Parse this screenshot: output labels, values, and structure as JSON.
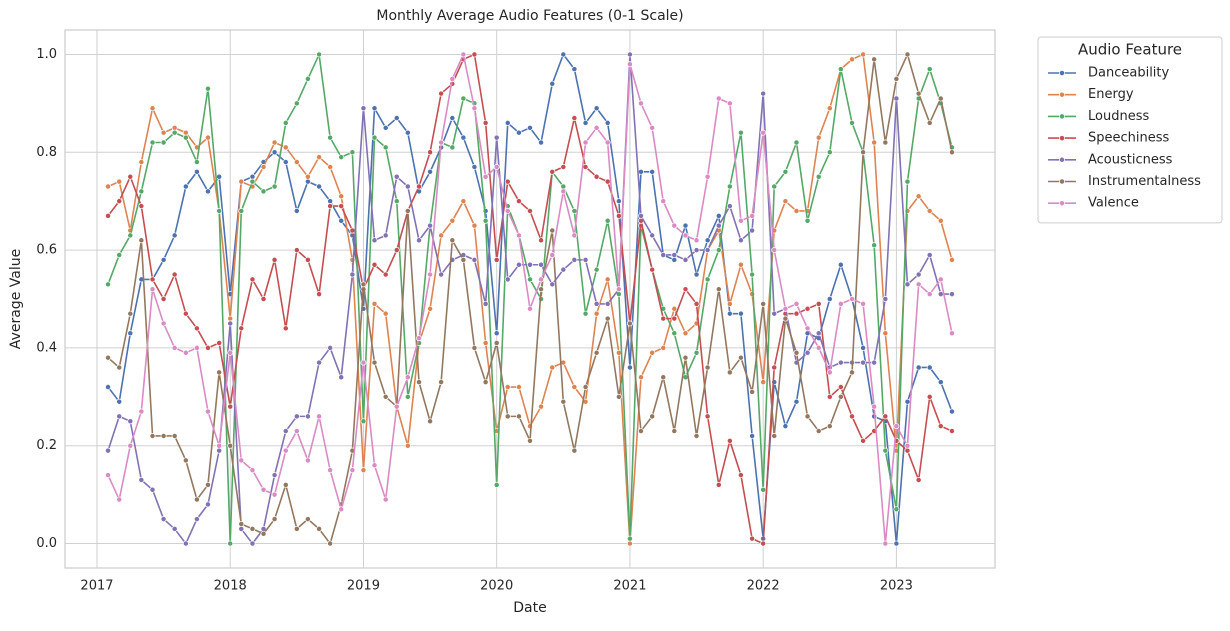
{
  "chart_data": {
    "type": "line",
    "title": "Monthly Average Audio Features (0-1 Scale)",
    "x_label": "Date",
    "y_label": "Average Value",
    "legend_title": "Audio Feature",
    "legend_position": "outside",
    "grid": true,
    "x": [
      2017.083,
      2017.167,
      2017.25,
      2017.333,
      2017.417,
      2017.5,
      2017.583,
      2017.667,
      2017.75,
      2017.833,
      2017.917,
      2018,
      2018.083,
      2018.167,
      2018.25,
      2018.333,
      2018.417,
      2018.5,
      2018.583,
      2018.667,
      2018.75,
      2018.833,
      2018.917,
      2019,
      2019.083,
      2019.167,
      2019.25,
      2019.333,
      2019.417,
      2019.5,
      2019.583,
      2019.667,
      2019.75,
      2019.833,
      2019.917,
      2020,
      2020.083,
      2020.167,
      2020.25,
      2020.333,
      2020.417,
      2020.5,
      2020.583,
      2020.667,
      2020.75,
      2020.833,
      2020.917,
      2021,
      2021.083,
      2021.167,
      2021.25,
      2021.333,
      2021.417,
      2021.5,
      2021.583,
      2021.667,
      2021.75,
      2021.833,
      2021.917,
      2022,
      2022.083,
      2022.167,
      2022.25,
      2022.333,
      2022.417,
      2022.5,
      2022.583,
      2022.667,
      2022.75,
      2022.833,
      2022.917,
      2023,
      2023.083,
      2023.167,
      2023.25,
      2023.333,
      2023.417
    ],
    "xlim": [
      2016.76,
      2023.74
    ],
    "xticks": [
      2017,
      2018,
      2019,
      2020,
      2021,
      2022,
      2023
    ],
    "ylim": [
      -0.05,
      1.05
    ],
    "yticks": [
      {
        "value": 0,
        "label": "0.0"
      },
      0.2,
      0.4,
      0.6,
      0.8,
      {
        "value": 1,
        "label": "1.0"
      }
    ],
    "series": [
      {
        "name": "Danceability",
        "color": "#4c72b0",
        "values": [
          0.32,
          0.29,
          0.43,
          0.54,
          0.54,
          0.58,
          0.63,
          0.73,
          0.76,
          0.72,
          0.75,
          0.51,
          0.74,
          0.75,
          0.78,
          0.8,
          0.78,
          0.68,
          0.74,
          0.73,
          0.7,
          0.66,
          0.63,
          0.48,
          0.89,
          0.85,
          0.87,
          0.84,
          0.72,
          0.76,
          0.81,
          0.87,
          0.83,
          0.77,
          0.68,
          0.43,
          0.86,
          0.84,
          0.85,
          0.82,
          0.94,
          1.0,
          0.97,
          0.86,
          0.89,
          0.86,
          0.7,
          0.36,
          0.76,
          0.76,
          0.59,
          0.58,
          0.65,
          0.55,
          0.62,
          0.67,
          0.47,
          0.47,
          0.22,
          0.01,
          0.33,
          0.24,
          0.29,
          0.43,
          0.42,
          0.5,
          0.57,
          0.5,
          0.4,
          0.26,
          0.25,
          0.0,
          0.29,
          0.36,
          0.36,
          0.33,
          0.27
        ]
      },
      {
        "name": "Energy",
        "color": "#dd8452",
        "values": [
          0.73,
          0.74,
          0.64,
          0.78,
          0.89,
          0.84,
          0.85,
          0.84,
          0.81,
          0.83,
          0.68,
          0.46,
          0.74,
          0.73,
          0.77,
          0.82,
          0.81,
          0.78,
          0.75,
          0.79,
          0.77,
          0.71,
          0.58,
          0.15,
          0.49,
          0.47,
          0.28,
          0.2,
          0.41,
          0.48,
          0.63,
          0.66,
          0.7,
          0.65,
          0.41,
          0.23,
          0.32,
          0.32,
          0.24,
          0.28,
          0.36,
          0.37,
          0.32,
          0.29,
          0.47,
          0.54,
          0.39,
          0.0,
          0.34,
          0.39,
          0.4,
          0.48,
          0.43,
          0.45,
          0.6,
          0.64,
          0.49,
          0.57,
          0.51,
          0.33,
          0.64,
          0.7,
          0.68,
          0.68,
          0.83,
          0.89,
          0.97,
          0.99,
          1.0,
          0.82,
          0.43,
          0.19,
          0.68,
          0.71,
          0.68,
          0.66,
          0.58
        ]
      },
      {
        "name": "Loudness",
        "color": "#55a868",
        "values": [
          0.53,
          0.59,
          0.63,
          0.72,
          0.82,
          0.82,
          0.84,
          0.83,
          0.78,
          0.93,
          0.68,
          0.0,
          0.68,
          0.74,
          0.72,
          0.73,
          0.86,
          0.9,
          0.95,
          1.0,
          0.83,
          0.79,
          0.8,
          0.25,
          0.83,
          0.81,
          0.7,
          0.3,
          0.41,
          0.65,
          0.82,
          0.81,
          0.91,
          0.9,
          0.66,
          0.12,
          0.69,
          0.63,
          0.54,
          0.5,
          0.76,
          0.73,
          0.68,
          0.47,
          0.56,
          0.66,
          0.51,
          0.01,
          0.65,
          0.56,
          0.48,
          0.43,
          0.34,
          0.39,
          0.54,
          0.6,
          0.73,
          0.84,
          0.55,
          0.11,
          0.73,
          0.76,
          0.82,
          0.66,
          0.75,
          0.8,
          0.97,
          0.86,
          0.8,
          0.61,
          0.19,
          0.07,
          0.74,
          0.91,
          0.97,
          0.9,
          0.81
        ]
      },
      {
        "name": "Speechiness",
        "color": "#c44e52",
        "values": [
          0.67,
          0.7,
          0.75,
          0.69,
          0.54,
          0.5,
          0.55,
          0.47,
          0.44,
          0.4,
          0.41,
          0.28,
          0.44,
          0.54,
          0.5,
          0.58,
          0.44,
          0.6,
          0.58,
          0.51,
          0.69,
          0.69,
          0.64,
          0.52,
          0.57,
          0.55,
          0.6,
          0.68,
          0.73,
          0.8,
          0.92,
          0.94,
          0.99,
          1.0,
          0.86,
          0.58,
          0.74,
          0.7,
          0.68,
          0.62,
          0.76,
          0.77,
          0.87,
          0.77,
          0.75,
          0.74,
          0.67,
          0.45,
          0.66,
          0.56,
          0.46,
          0.46,
          0.52,
          0.49,
          0.26,
          0.12,
          0.21,
          0.14,
          0.01,
          0.0,
          0.36,
          0.47,
          0.47,
          0.48,
          0.49,
          0.3,
          0.32,
          0.26,
          0.21,
          0.23,
          0.26,
          0.21,
          0.19,
          0.13,
          0.3,
          0.24,
          0.23
        ]
      },
      {
        "name": "Acousticness",
        "color": "#8172b3",
        "values": [
          0.19,
          0.26,
          0.25,
          0.13,
          0.11,
          0.05,
          0.03,
          0.0,
          0.05,
          0.08,
          0.19,
          0.45,
          0.03,
          0.0,
          0.03,
          0.14,
          0.23,
          0.26,
          0.26,
          0.37,
          0.4,
          0.34,
          0.55,
          0.89,
          0.62,
          0.63,
          0.75,
          0.73,
          0.62,
          0.65,
          0.55,
          0.58,
          0.59,
          0.58,
          0.49,
          0.83,
          0.54,
          0.57,
          0.57,
          0.57,
          0.53,
          0.56,
          0.58,
          0.58,
          0.49,
          0.49,
          0.52,
          1.0,
          0.67,
          0.63,
          0.59,
          0.59,
          0.58,
          0.6,
          0.6,
          0.65,
          0.69,
          0.62,
          0.64,
          0.92,
          0.47,
          0.48,
          0.37,
          0.39,
          0.43,
          0.36,
          0.37,
          0.37,
          0.37,
          0.37,
          0.5,
          0.91,
          0.53,
          0.55,
          0.59,
          0.51,
          0.51
        ]
      },
      {
        "name": "Instrumentalness",
        "color": "#937860",
        "values": [
          0.38,
          0.36,
          0.47,
          0.62,
          0.22,
          0.22,
          0.22,
          0.17,
          0.09,
          0.12,
          0.35,
          0.2,
          0.04,
          0.03,
          0.02,
          0.05,
          0.12,
          0.03,
          0.05,
          0.03,
          0.0,
          0.08,
          0.19,
          0.53,
          0.37,
          0.3,
          0.28,
          0.68,
          0.33,
          0.25,
          0.33,
          0.62,
          0.58,
          0.4,
          0.33,
          0.41,
          0.26,
          0.26,
          0.21,
          0.52,
          0.64,
          0.29,
          0.19,
          0.32,
          0.39,
          0.46,
          0.3,
          0.45,
          0.23,
          0.26,
          0.34,
          0.23,
          0.38,
          0.22,
          0.36,
          0.52,
          0.35,
          0.38,
          0.31,
          0.49,
          0.22,
          0.46,
          0.39,
          0.26,
          0.23,
          0.24,
          0.3,
          0.35,
          0.8,
          0.99,
          0.82,
          0.95,
          1.0,
          0.92,
          0.86,
          0.91,
          0.8
        ]
      },
      {
        "name": "Valence",
        "color": "#da8bc3",
        "values": [
          0.14,
          0.09,
          0.2,
          0.27,
          0.52,
          0.45,
          0.4,
          0.39,
          0.4,
          0.27,
          0.2,
          0.39,
          0.17,
          0.15,
          0.11,
          0.1,
          0.19,
          0.23,
          0.17,
          0.26,
          0.15,
          0.07,
          0.15,
          0.37,
          0.16,
          0.09,
          0.28,
          0.34,
          0.42,
          0.55,
          0.82,
          0.95,
          1.0,
          0.89,
          0.75,
          0.77,
          0.68,
          0.63,
          0.48,
          0.54,
          0.59,
          0.72,
          0.63,
          0.82,
          0.85,
          0.82,
          0.52,
          0.98,
          0.9,
          0.85,
          0.7,
          0.65,
          0.63,
          0.62,
          0.75,
          0.91,
          0.9,
          0.66,
          0.67,
          0.84,
          0.6,
          0.48,
          0.49,
          0.44,
          0.4,
          0.35,
          0.49,
          0.5,
          0.49,
          0.28,
          0.0,
          0.24,
          0.2,
          0.53,
          0.51,
          0.54,
          0.43
        ]
      }
    ]
  }
}
